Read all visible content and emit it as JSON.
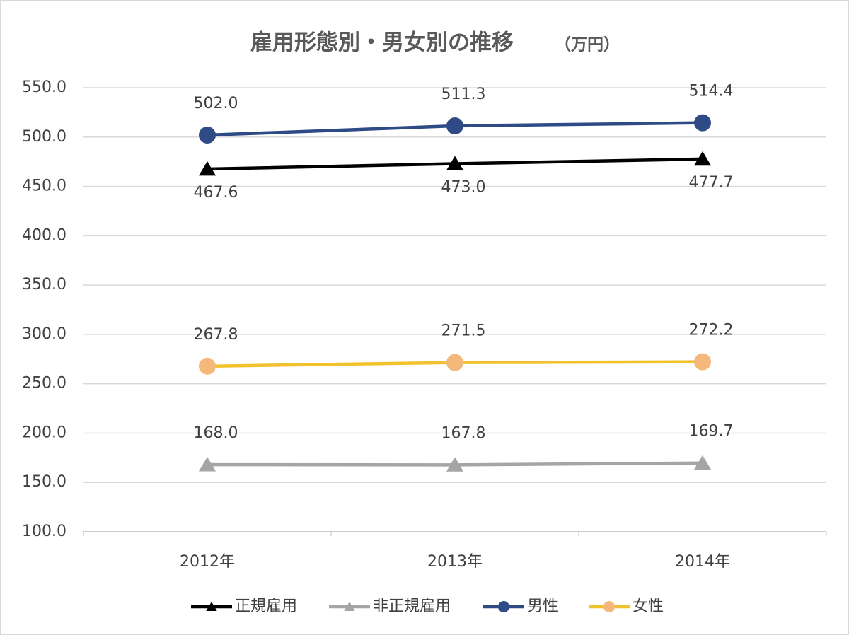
{
  "chart_data": {
    "type": "line",
    "title": "雇用形態別・男女別の推移",
    "unit": "（万円）",
    "categories": [
      "2012年",
      "2013年",
      "2014年"
    ],
    "series": [
      {
        "name": "正規雇用",
        "color": "#000000",
        "marker": "triangle",
        "label_position": "below",
        "values": [
          467.6,
          473.0,
          477.7
        ],
        "value_labels": [
          "467.6",
          "473.0",
          "477.7"
        ]
      },
      {
        "name": "非正規雇用",
        "color": "#a5a5a5",
        "marker": "triangle",
        "label_position": "above",
        "values": [
          168.0,
          167.8,
          169.7
        ],
        "value_labels": [
          "168.0",
          "167.8",
          "169.7"
        ]
      },
      {
        "name": "男性",
        "color": "#2f4b86",
        "marker": "circle",
        "label_position": "above",
        "values": [
          502.0,
          511.3,
          514.4
        ],
        "value_labels": [
          "502.0",
          "511.3",
          "514.4"
        ]
      },
      {
        "name": "女性",
        "color": "#f2c12e",
        "marker": "circle",
        "label_position": "above",
        "values": [
          267.8,
          271.5,
          272.2
        ],
        "value_labels": [
          "267.8",
          "271.5",
          "272.2"
        ]
      }
    ],
    "ylim": [
      100,
      550
    ],
    "yticks": [
      {
        "value": 100,
        "label": "100.0"
      },
      {
        "value": 150,
        "label": "150.0"
      },
      {
        "value": 200,
        "label": "200.0"
      },
      {
        "value": 250,
        "label": "250.0"
      },
      {
        "value": 300,
        "label": "300.0"
      },
      {
        "value": 350,
        "label": "350.0"
      },
      {
        "value": 400,
        "label": "400.0"
      },
      {
        "value": 450,
        "label": "450.0"
      },
      {
        "value": 500,
        "label": "500.0"
      },
      {
        "value": 550,
        "label": "550.0"
      }
    ],
    "grid": true,
    "legend": "bottom"
  }
}
